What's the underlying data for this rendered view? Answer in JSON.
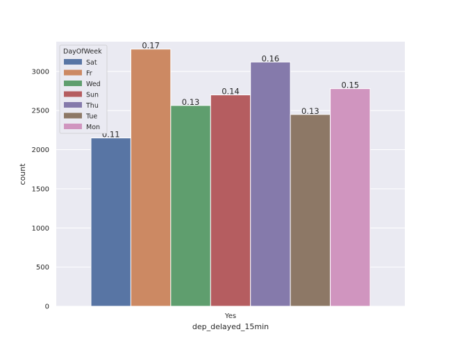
{
  "chart_data": {
    "type": "bar",
    "title": "",
    "xlabel": "dep_delayed_15min",
    "ylabel": "count",
    "categories": [
      "Yes"
    ],
    "ylim": [
      0,
      3380
    ],
    "yticks": [
      0,
      500,
      1000,
      1500,
      2000,
      2500,
      3000
    ],
    "grid": true,
    "legend": {
      "title": "DayOfWeek",
      "placement": "top-left"
    },
    "series": [
      {
        "name": "Sat",
        "values": [
          2150
        ],
        "label": "0.11",
        "color": "#5875a4"
      },
      {
        "name": "Fr",
        "values": [
          3285
        ],
        "label": "0.17",
        "color": "#cc8963"
      },
      {
        "name": "Wed",
        "values": [
          2565
        ],
        "label": "0.13",
        "color": "#5f9e6e"
      },
      {
        "name": "Sun",
        "values": [
          2700
        ],
        "label": "0.14",
        "color": "#b55d60"
      },
      {
        "name": "Thu",
        "values": [
          3120
        ],
        "label": "0.16",
        "color": "#857aab"
      },
      {
        "name": "Tue",
        "values": [
          2450
        ],
        "label": "0.13",
        "color": "#8d7866"
      },
      {
        "name": "Mon",
        "values": [
          2780
        ],
        "label": "0.15",
        "color": "#d095bf"
      }
    ]
  },
  "colors": {
    "plot_background": "#eaeaf2",
    "grid": "#ffffff",
    "text": "#262626"
  }
}
